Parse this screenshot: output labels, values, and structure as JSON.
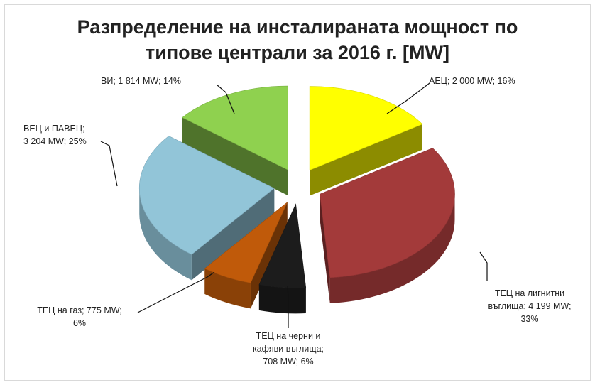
{
  "chart_data": {
    "type": "pie",
    "title": [
      "Разпределение на инсталираната мощност по",
      "типове централи за 2016 г. [MW]"
    ],
    "slices": [
      {
        "category": "АЕЦ",
        "value": 2000,
        "percent": 16,
        "color": "#ffff00",
        "label_lines": [
          "АЕЦ; 2 000 MW; 16%"
        ]
      },
      {
        "category": "ТЕЦ на лигнитни въглища",
        "value": 4199,
        "percent": 33,
        "color": "#a33a3a",
        "label_lines": [
          "ТЕЦ на лигнитни",
          "въглища; 4 199 MW;",
          "33%"
        ]
      },
      {
        "category": "ТЕЦ на черни и кафяви въглища",
        "value": 708,
        "percent": 6,
        "color": "#1c1c1c",
        "label_lines": [
          "ТЕЦ на черни и",
          "кафяви въглища;",
          "708 MW; 6%"
        ]
      },
      {
        "category": "ТЕЦ на газ",
        "value": 775,
        "percent": 6,
        "color": "#c05a0a",
        "label_lines": [
          "ТЕЦ на газ; 775 MW;",
          "6%"
        ]
      },
      {
        "category": "ВЕЦ и ПАВЕЦ",
        "value": 3204,
        "percent": 25,
        "color": "#92c5d8",
        "label_lines": [
          "ВЕЦ и ПАВЕЦ;",
          "3 204 MW; 25%"
        ]
      },
      {
        "category": "ВИ",
        "value": 1814,
        "percent": 14,
        "color": "#8fd14f",
        "label_lines": [
          "ВИ; 1 814 MW; 14%"
        ]
      }
    ],
    "legend": "none",
    "exploded": true
  }
}
